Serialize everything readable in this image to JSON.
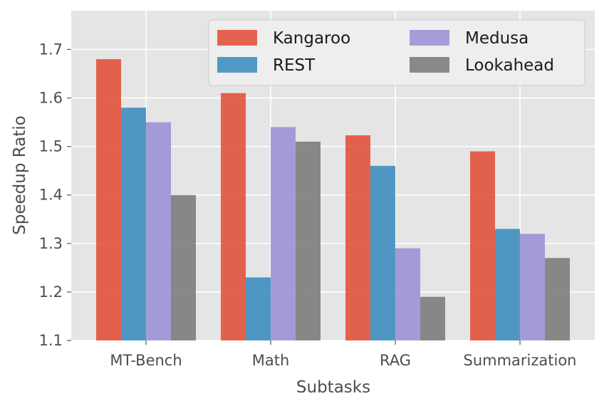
{
  "chart_data": {
    "type": "bar",
    "title": "",
    "xlabel": "Subtasks",
    "ylabel": "Speedup Ratio",
    "ylim": [
      1.1,
      1.78
    ],
    "yticks": [
      "1.1",
      "1.2",
      "1.3",
      "1.4",
      "1.5",
      "1.6",
      "1.7"
    ],
    "categories": [
      "MT-Bench",
      "Math",
      "RAG",
      "Summarization"
    ],
    "series": [
      {
        "name": "Kangaroo",
        "color": "#e24a33",
        "values": [
          1.68,
          1.61,
          1.523,
          1.49
        ]
      },
      {
        "name": "REST",
        "color": "#348abd",
        "values": [
          1.58,
          1.23,
          1.46,
          1.33
        ]
      },
      {
        "name": "Medusa",
        "color": "#988ed5",
        "values": [
          1.55,
          1.54,
          1.29,
          1.32
        ]
      },
      {
        "name": "Lookahead",
        "color": "#777777",
        "values": [
          1.4,
          1.51,
          1.19,
          1.27
        ]
      }
    ],
    "grid": true,
    "legend": {
      "placement": "top-right",
      "columns": 2
    },
    "background": "#e5e5e5"
  }
}
